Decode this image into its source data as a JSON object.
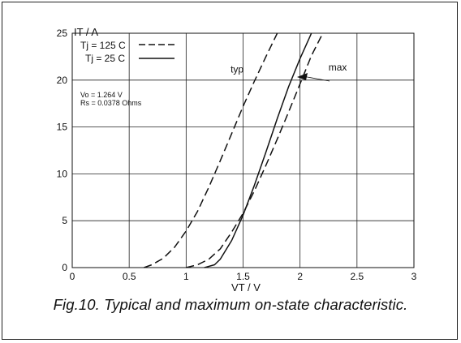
{
  "chart_data": {
    "type": "line",
    "ylabel": "IT / A",
    "xlabel": "VT / V",
    "xlim": [
      0,
      3
    ],
    "ylim": [
      0,
      25
    ],
    "x_ticks": [
      0,
      0.5,
      1,
      1.5,
      2,
      2.5,
      3
    ],
    "x_tick_labels": [
      "0",
      "0.5",
      "1",
      "1.5",
      "2",
      "2.5",
      "3"
    ],
    "y_ticks": [
      0,
      5,
      10,
      15,
      20,
      25
    ],
    "y_tick_labels": [
      "0",
      "5",
      "10",
      "15",
      "20",
      "25"
    ],
    "grid": true,
    "legend": {
      "placement": "top-left",
      "entries": [
        {
          "label": "Tj = 125 C",
          "style": "dashed"
        },
        {
          "label": "Tj = 25 C",
          "style": "solid"
        }
      ]
    },
    "params_text": [
      "Vo = 1.264 V",
      "Rs = 0.0378 Ohms"
    ],
    "series": [
      {
        "style": "dashed",
        "group": "typ",
        "x": [
          0.63,
          0.7,
          0.8,
          0.9,
          1.0,
          1.1,
          1.2,
          1.3,
          1.4,
          1.5,
          1.6,
          1.7,
          1.8
        ],
        "y": [
          0,
          0.3,
          1.0,
          2.2,
          3.9,
          6.0,
          8.6,
          11.4,
          14.3,
          17.2,
          19.9,
          22.5,
          25
        ]
      },
      {
        "style": "dashed",
        "group": "typ",
        "x": [
          1.0,
          1.1,
          1.2,
          1.3,
          1.4,
          1.5,
          1.6,
          1.7,
          1.8,
          1.9,
          2.0,
          2.1,
          2.2
        ],
        "y": [
          0,
          0.3,
          0.9,
          2.0,
          3.8,
          5.8,
          8.2,
          10.9,
          13.7,
          16.6,
          19.6,
          22.6,
          25
        ]
      },
      {
        "style": "solid",
        "group": "max",
        "x": [
          1.16,
          1.25,
          1.3,
          1.4,
          1.5,
          1.6,
          1.7,
          1.8,
          1.9,
          2.0,
          2.1
        ],
        "y": [
          0,
          0.3,
          0.9,
          2.9,
          5.6,
          8.8,
          12.3,
          15.9,
          19.3,
          22.3,
          25
        ]
      }
    ],
    "annotations": [
      {
        "text": "typ",
        "x": 1.39,
        "y": 20.8
      },
      {
        "text": "max",
        "x": 2.25,
        "y": 21.0
      }
    ]
  },
  "caption": "Fig.10.  Typical and maximum on-state characteristic."
}
